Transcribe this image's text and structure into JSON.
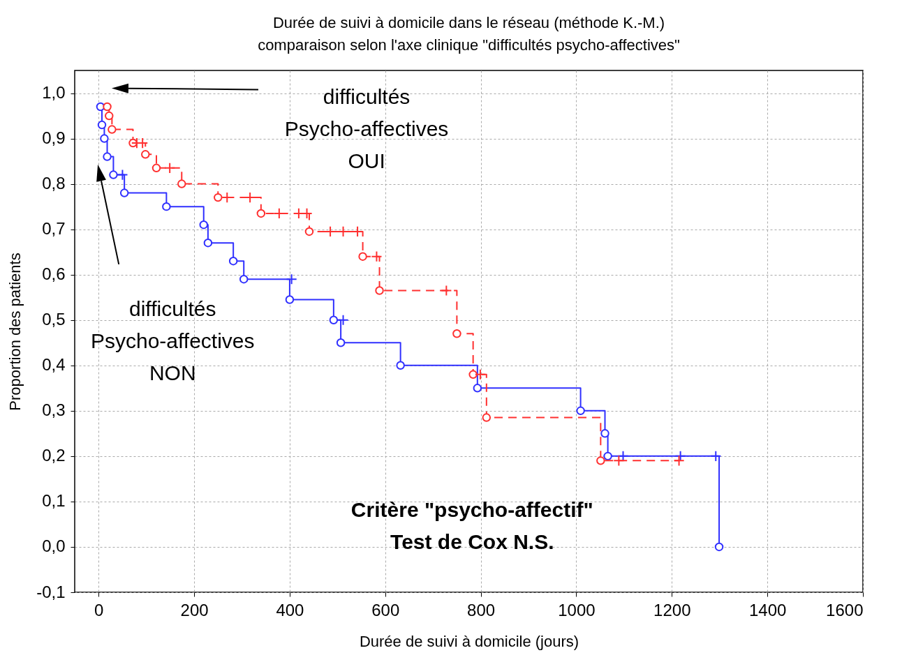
{
  "chart_data": {
    "type": "step",
    "title": "Durée de suivi à domicile dans le réseau (méthode K.-M.)",
    "subtitle": "comparaison selon l'axe clinique \"difficultés psycho-affectives\"",
    "xlabel": "Durée de suivi à domicile (jours)",
    "ylabel": "Proportion des patients",
    "xlim": [
      -50,
      1600
    ],
    "xticks": [
      0,
      200,
      400,
      600,
      800,
      1000,
      1200,
      1400,
      1600
    ],
    "ylim": [
      -0.1,
      1.05
    ],
    "yticks": [
      {
        "value": -0.1,
        "label": "-0,1"
      },
      {
        "value": 0,
        "label": "0,0"
      },
      {
        "value": 0.1,
        "label": "0,1"
      },
      {
        "value": 0.2,
        "label": "0,2"
      },
      {
        "value": 0.3,
        "label": "0,3"
      },
      {
        "value": 0.4,
        "label": "0,4"
      },
      {
        "value": 0.5,
        "label": "0,5"
      },
      {
        "value": 0.6,
        "label": "0,6"
      },
      {
        "value": 0.7,
        "label": "0,7"
      },
      {
        "value": 0.8,
        "label": "0,8"
      },
      {
        "value": 0.9,
        "label": "0,9"
      },
      {
        "value": 1.0,
        "label": "1,0"
      }
    ],
    "grid": true,
    "series": [
      {
        "type": "step",
        "color": "#3030ff",
        "line_style": "solid",
        "marker": "none",
        "x": [
          4,
          7,
          12,
          18,
          31,
          54,
          142,
          220,
          229,
          282,
          304,
          400,
          492,
          507,
          632,
          793,
          1009,
          1060,
          1066,
          1299
        ],
        "values": [
          0.97,
          0.93,
          0.9,
          0.86,
          0.82,
          0.78,
          0.75,
          0.71,
          0.67,
          0.63,
          0.59,
          0.545,
          0.5,
          0.45,
          0.4,
          0.35,
          0.3,
          0.25,
          0.2,
          0.0
        ]
      },
      {
        "type": "scatter",
        "color": "#3030ff",
        "marker": "circle",
        "x": [
          4,
          7,
          12,
          18,
          31,
          54,
          142,
          220,
          229,
          282,
          304,
          400,
          492,
          507,
          632,
          793,
          1009,
          1060,
          1066,
          1299
        ],
        "values": [
          0.97,
          0.93,
          0.9,
          0.86,
          0.82,
          0.78,
          0.75,
          0.71,
          0.67,
          0.63,
          0.59,
          0.545,
          0.5,
          0.45,
          0.4,
          0.35,
          0.3,
          0.25,
          0.2,
          0.0
        ]
      },
      {
        "type": "scatter",
        "color": "#3030ff",
        "marker": "cross",
        "x": [
          50,
          404,
          512,
          1098,
          1218,
          1292
        ],
        "values": [
          0.82,
          0.59,
          0.5,
          0.2,
          0.2,
          0.2
        ]
      },
      {
        "type": "step",
        "color": "#ff3030",
        "line_style": "dashed",
        "marker": "none",
        "x": [
          18,
          22,
          28,
          72,
          98,
          121,
          174,
          250,
          340,
          441,
          553,
          588,
          750,
          784,
          812,
          1051,
          1215
        ],
        "values": [
          0.97,
          0.95,
          0.92,
          0.89,
          0.865,
          0.835,
          0.8,
          0.77,
          0.735,
          0.695,
          0.64,
          0.565,
          0.47,
          0.38,
          0.285,
          0.19,
          0.19
        ]
      },
      {
        "type": "scatter",
        "color": "#ff3030",
        "marker": "circle",
        "x": [
          18,
          22,
          28,
          72,
          98,
          121,
          174,
          250,
          340,
          441,
          553,
          588,
          750,
          784,
          812,
          1051
        ],
        "values": [
          0.97,
          0.95,
          0.92,
          0.89,
          0.865,
          0.835,
          0.8,
          0.77,
          0.735,
          0.695,
          0.64,
          0.565,
          0.47,
          0.38,
          0.285,
          0.19
        ]
      },
      {
        "type": "scatter",
        "color": "#ff3030",
        "marker": "cross",
        "x": [
          80,
          92,
          149,
          269,
          317,
          378,
          419,
          436,
          485,
          512,
          542,
          582,
          728,
          799,
          1089,
          1215
        ],
        "values": [
          0.89,
          0.89,
          0.835,
          0.77,
          0.77,
          0.735,
          0.735,
          0.735,
          0.695,
          0.695,
          0.695,
          0.64,
          0.565,
          0.38,
          0.19,
          0.19
        ]
      }
    ],
    "annotations": [
      "difficultés\nPsycho-affectives\nOUI",
      "difficultés\nPsycho-affectives\nNON",
      "Critère \"psycho-affectif\"\nTest de Cox N.S."
    ]
  }
}
